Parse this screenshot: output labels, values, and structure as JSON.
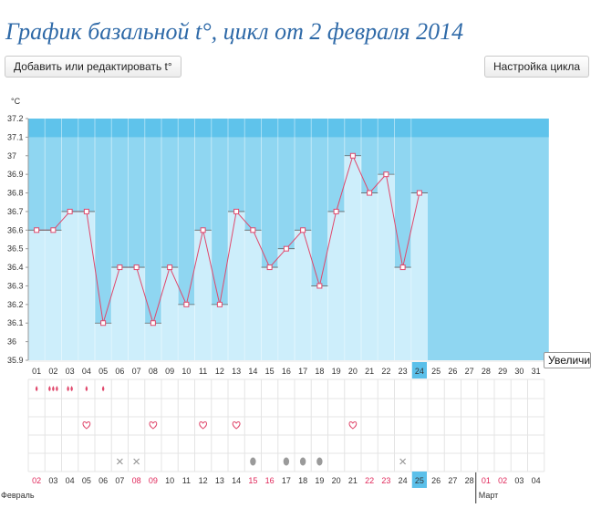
{
  "page": {
    "title": "График базальной t°, цикл от 2 февраля 2014",
    "add_button": "Добавить или редактировать t°",
    "settings_button": "Настройка цикла",
    "tooltip": "Увеличить"
  },
  "colors": {
    "plot_bg": "#8fd6f1",
    "plot_top": "#5fc3eb",
    "bar_fill": "#cdeefb",
    "line": "#e0486c",
    "grid": "#e4e4e4",
    "highlight": "#5bc0ea",
    "red_text": "#e0275a"
  },
  "chart_data": {
    "type": "line",
    "title": "График базальной t°, цикл от 2 февраля 2014",
    "ylabel": "°C",
    "ylim": [
      35.9,
      37.2
    ],
    "yticks": [
      "35.9",
      "36",
      "36.1",
      "36.2",
      "36.3",
      "36.4",
      "36.5",
      "36.6",
      "36.7",
      "36.8",
      "36.9",
      "37",
      "37.1",
      "37.2"
    ],
    "cycle_days": [
      "01",
      "02",
      "03",
      "04",
      "05",
      "06",
      "07",
      "08",
      "09",
      "10",
      "11",
      "12",
      "13",
      "14",
      "15",
      "16",
      "17",
      "18",
      "19",
      "20",
      "21",
      "22",
      "23",
      "24",
      "25",
      "26",
      "27",
      "28",
      "29",
      "30",
      "31"
    ],
    "temperatures": [
      36.6,
      36.6,
      36.7,
      36.7,
      36.1,
      36.4,
      36.4,
      36.1,
      36.4,
      36.2,
      36.6,
      36.2,
      36.7,
      36.6,
      36.4,
      36.5,
      36.6,
      36.3,
      36.7,
      37.0,
      36.8,
      36.9,
      36.4,
      36.8
    ],
    "current_day_index": 23,
    "dates": [
      "02",
      "03",
      "04",
      "05",
      "06",
      "07",
      "08",
      "09",
      "10",
      "11",
      "12",
      "13",
      "14",
      "15",
      "16",
      "17",
      "18",
      "19",
      "20",
      "21",
      "22",
      "23",
      "24",
      "25",
      "26",
      "27",
      "28",
      "01",
      "02",
      "03",
      "04"
    ],
    "red_date_indices": [
      0,
      6,
      7,
      13,
      14,
      20,
      21,
      27,
      28
    ],
    "months": [
      "Февраль",
      "Март"
    ],
    "month_split_index": 27,
    "markers": {
      "menstruation": [
        [
          0,
          1
        ],
        [
          1,
          3
        ],
        [
          2,
          2
        ],
        [
          3,
          1
        ],
        [
          4,
          1
        ]
      ],
      "sex": [
        3,
        7,
        10,
        12,
        19
      ],
      "cross": [
        5,
        6,
        22
      ],
      "drop": [
        13,
        15,
        16,
        17
      ]
    }
  }
}
